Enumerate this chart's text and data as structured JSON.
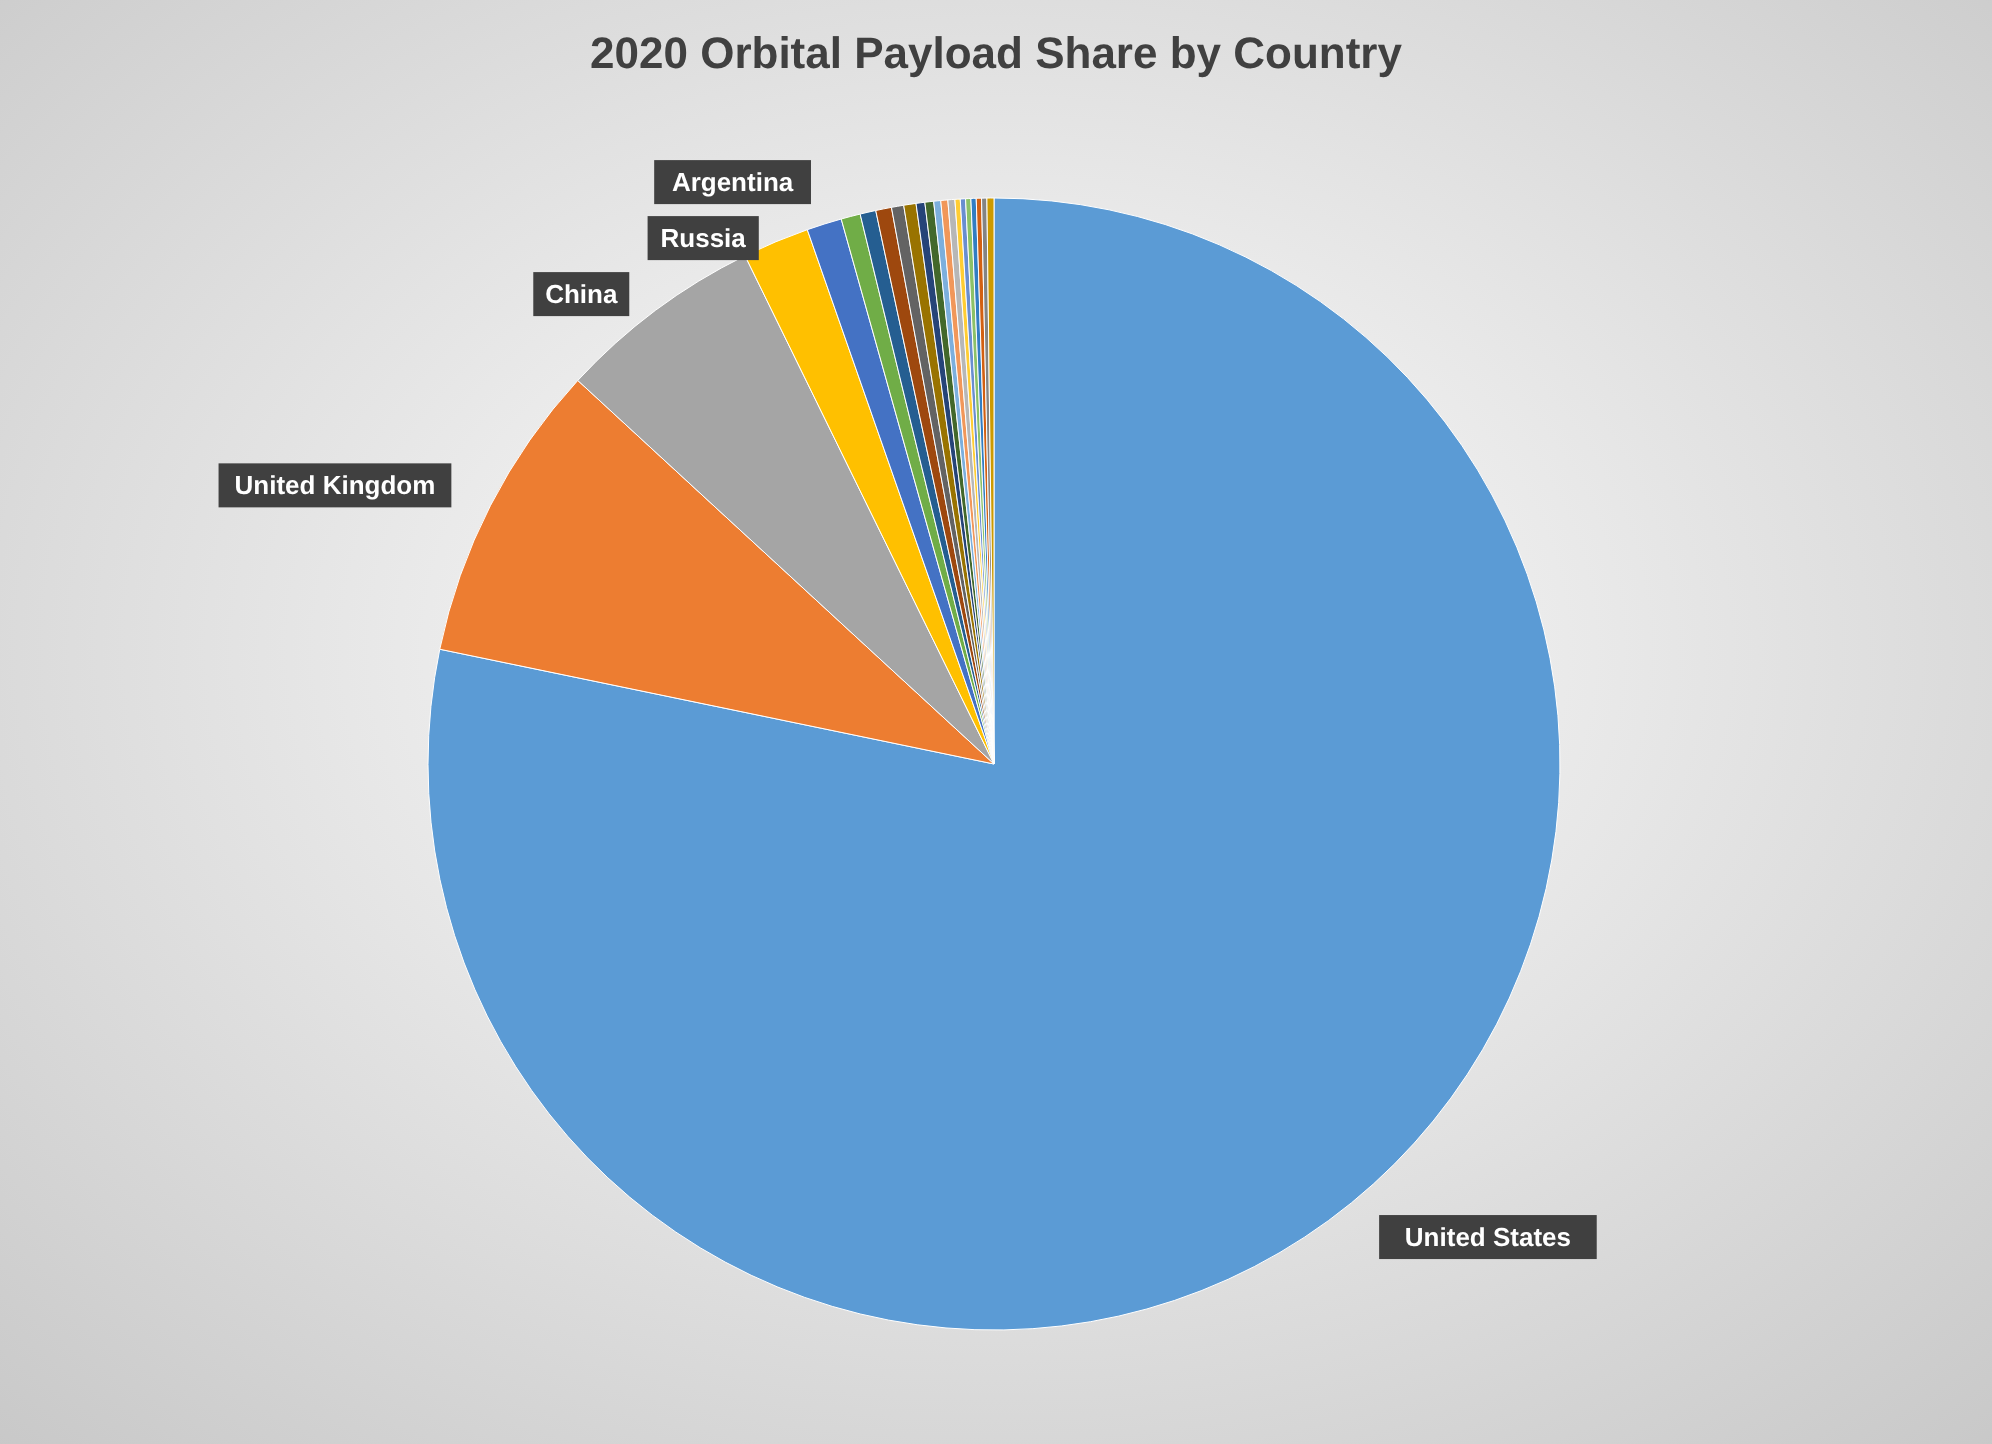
{
  "chart_data": {
    "type": "pie",
    "title": "2020 Orbital Payload Share by Country",
    "categories": [
      "United States",
      "United Kingdom",
      "China",
      "Russia",
      "Argentina",
      null,
      null,
      null,
      null,
      null,
      null,
      null,
      null,
      null,
      null,
      null,
      null,
      null,
      null,
      null,
      null,
      null
    ],
    "values": [
      78.25,
      8.6,
      5.9,
      1.9,
      1.0,
      0.55,
      0.45,
      0.45,
      0.35,
      0.35,
      0.25,
      0.25,
      0.2,
      0.2,
      0.2,
      0.15,
      0.15,
      0.15,
      0.15,
      0.15,
      0.15,
      0.2
    ],
    "colors": [
      "#5b9bd5",
      "#ed7d31",
      "#a5a5a5",
      "#ffc000",
      "#4472c4",
      "#70ad47",
      "#255e91",
      "#9e480e",
      "#636363",
      "#997300",
      "#264478",
      "#43682b",
      "#7cafdd",
      "#f1975a",
      "#b7b7b7",
      "#ffcd33",
      "#698ed0",
      "#8cc168",
      "#327dc2",
      "#d26012",
      "#848484",
      "#cc9a00"
    ]
  }
}
